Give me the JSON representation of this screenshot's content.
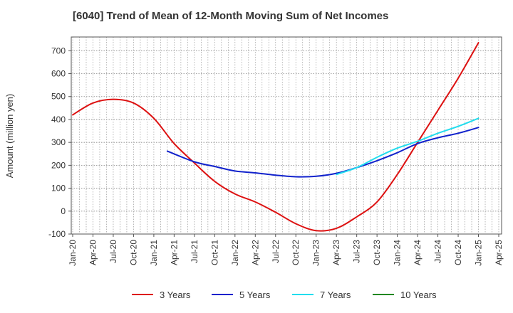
{
  "chart_data": {
    "type": "line",
    "title": "[6040]  Trend of Mean of 12-Month Moving Sum of Net Incomes",
    "xlabel": "",
    "ylabel": "Amount (million yen)",
    "ylim": [
      -100,
      760
    ],
    "yticks": [
      -100,
      0,
      100,
      200,
      300,
      400,
      500,
      600,
      700
    ],
    "x_tick_labels": [
      "Jan-20",
      "Apr-20",
      "Jul-20",
      "Oct-20",
      "Jan-21",
      "Apr-21",
      "Jul-21",
      "Oct-21",
      "Jan-22",
      "Apr-22",
      "Jul-22",
      "Oct-22",
      "Jan-23",
      "Apr-23",
      "Jul-23",
      "Oct-23",
      "Jan-24",
      "Apr-24",
      "Jul-24",
      "Oct-24",
      "Jan-25",
      "Apr-25"
    ],
    "grid": true,
    "legend_position": "bottom",
    "series": [
      {
        "name": "3 Years",
        "color": "#dd1111",
        "points": [
          [
            "Jan-20",
            420
          ],
          [
            "Apr-20",
            472
          ],
          [
            "Jul-20",
            488
          ],
          [
            "Oct-20",
            472
          ],
          [
            "Jan-21",
            405
          ],
          [
            "Apr-21",
            295
          ],
          [
            "Jul-21",
            210
          ],
          [
            "Oct-21",
            130
          ],
          [
            "Jan-22",
            75
          ],
          [
            "Apr-22",
            40
          ],
          [
            "Jul-22",
            -5
          ],
          [
            "Oct-22",
            -55
          ],
          [
            "Jan-23",
            -85
          ],
          [
            "Apr-23",
            -75
          ],
          [
            "Jul-23",
            -25
          ],
          [
            "Oct-23",
            40
          ],
          [
            "Jan-24",
            160
          ],
          [
            "Apr-24",
            300
          ],
          [
            "Jul-24",
            440
          ],
          [
            "Oct-24",
            580
          ],
          [
            "Jan-25",
            735
          ]
        ]
      },
      {
        "name": "5 Years",
        "color": "#1122cc",
        "points": [
          [
            "Mar-21",
            262
          ],
          [
            "Jul-21",
            215
          ],
          [
            "Oct-21",
            195
          ],
          [
            "Jan-22",
            175
          ],
          [
            "Apr-22",
            167
          ],
          [
            "Jul-22",
            157
          ],
          [
            "Oct-22",
            150
          ],
          [
            "Jan-23",
            152
          ],
          [
            "Apr-23",
            165
          ],
          [
            "Jul-23",
            190
          ],
          [
            "Oct-23",
            220
          ],
          [
            "Jan-24",
            255
          ],
          [
            "Apr-24",
            295
          ],
          [
            "Jul-24",
            320
          ],
          [
            "Oct-24",
            340
          ],
          [
            "Jan-25",
            365
          ]
        ]
      },
      {
        "name": "7 Years",
        "color": "#22ddee",
        "points": [
          [
            "Apr-23",
            160
          ],
          [
            "Jul-23",
            190
          ],
          [
            "Oct-23",
            235
          ],
          [
            "Jan-24",
            275
          ],
          [
            "Apr-24",
            305
          ],
          [
            "Jul-24",
            340
          ],
          [
            "Oct-24",
            370
          ],
          [
            "Jan-25",
            405
          ]
        ]
      },
      {
        "name": "10 Years",
        "color": "#228822",
        "points": []
      }
    ]
  }
}
